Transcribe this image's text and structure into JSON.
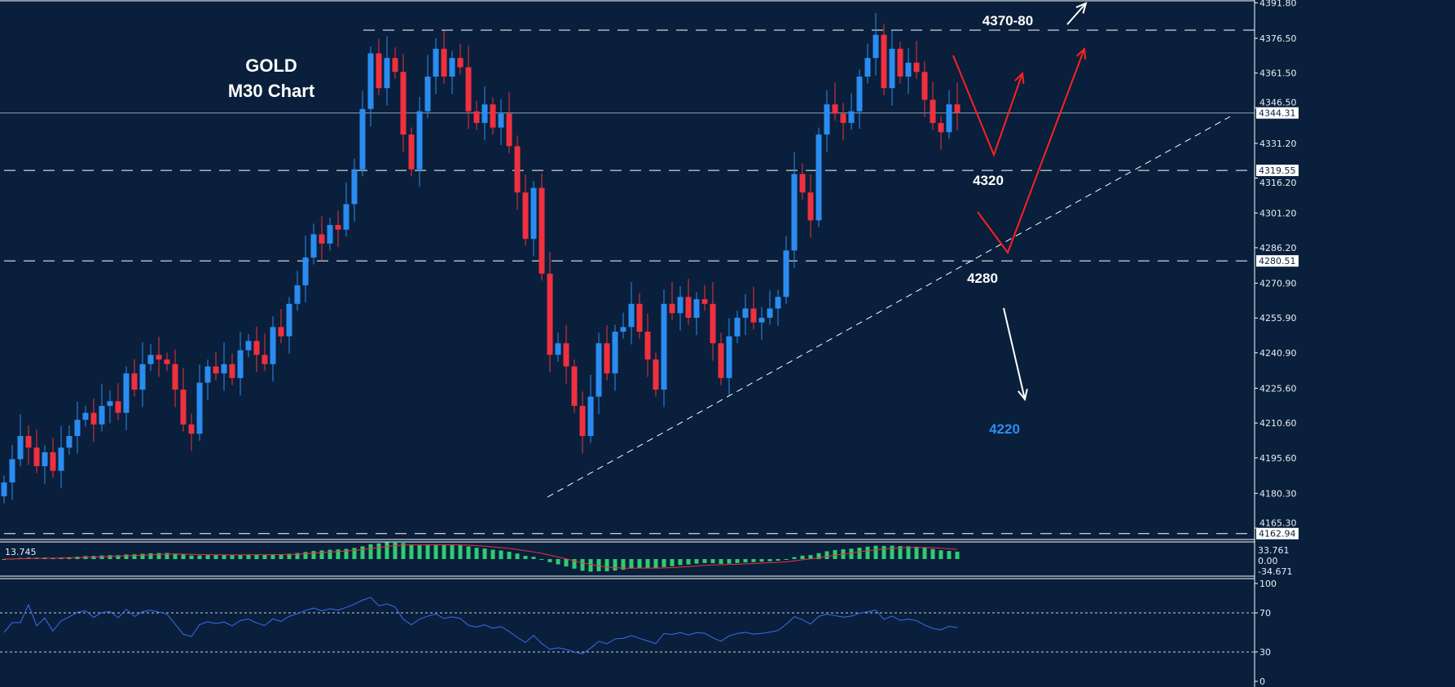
{
  "chart_data": {
    "type": "candlestick",
    "title": "GOLD",
    "subtitle": "M30 Chart",
    "ylim": [
      4162.94,
      4391.8
    ],
    "y_ticks": [
      "4391.80",
      "4376.50",
      "4361.50",
      "4346.50",
      "4331.20",
      "4316.20",
      "4301.20",
      "4286.20",
      "4270.90",
      "4255.90",
      "4240.90",
      "4225.60",
      "4210.60",
      "4195.60",
      "4180.30",
      "4165.30"
    ],
    "price_labels": [
      "4344.31",
      "4319.55",
      "4280.51",
      "4162.94"
    ],
    "levels": {
      "resistance": 4380,
      "current": 4344.31,
      "l1": 4319.55,
      "l2": 4280.51,
      "bottom": 4162.94
    },
    "closes": [
      4185,
      4195,
      4205,
      4200,
      4192,
      4198,
      4190,
      4200,
      4205,
      4212,
      4215,
      4210,
      4218,
      4220,
      4215,
      4232,
      4225,
      4236,
      4240,
      4238,
      4236,
      4225,
      4210,
      4206,
      4228,
      4235,
      4232,
      4236,
      4230,
      4242,
      4246,
      4240,
      4236,
      4252,
      4248,
      4262,
      4270,
      4282,
      4292,
      4288,
      4296,
      4294,
      4305,
      4320,
      4346,
      4370,
      4355,
      4368,
      4362,
      4335,
      4320,
      4345,
      4360,
      4372,
      4360,
      4368,
      4364,
      4345,
      4340,
      4348,
      4338,
      4344,
      4330,
      4310,
      4290,
      4312,
      4275,
      4240,
      4245,
      4235,
      4218,
      4205,
      4222,
      4245,
      4232,
      4250,
      4252,
      4262,
      4250,
      4238,
      4225,
      4262,
      4258,
      4265,
      4256,
      4264,
      4262,
      4245,
      4230,
      4248,
      4256,
      4260,
      4254,
      4256,
      4260,
      4265,
      4285,
      4318,
      4310,
      4298,
      4335,
      4348,
      4344,
      4340,
      4345,
      4360,
      4368,
      4378,
      4355,
      4372,
      4360,
      4366,
      4362,
      4350,
      4340,
      4336,
      4348,
      4344.31
    ],
    "annotations": [
      "4370-80",
      "4320",
      "4280",
      "4220"
    ],
    "macd": {
      "value_label": "13.745",
      "ticks": [
        "33.761",
        "0.00",
        "-34.671"
      ]
    },
    "rsi": {
      "ticks": [
        "100",
        "70",
        "30",
        "0"
      ]
    },
    "colors": {
      "background": "#0a1f3b",
      "bull": "#2a8cf0",
      "bear": "#f0303f",
      "histogram": "#2ecc71",
      "signal": "#f0303f",
      "rsi": "#3a6cf0",
      "arrow_red": "#ff2020",
      "label_blue": "#2a8cf0"
    }
  }
}
